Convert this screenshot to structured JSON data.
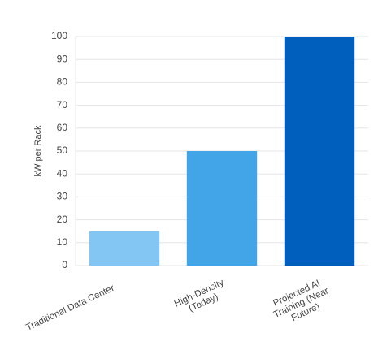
{
  "chart_data": {
    "type": "bar",
    "y_label": "kW per Rack",
    "categories": [
      "Traditional Data Center",
      "High-Density (Today)",
      "Projected AI Training (Near Future)"
    ],
    "values": [
      15,
      50,
      100
    ],
    "colors": [
      "#83c6f3",
      "#42a5e8",
      "#005ebd"
    ],
    "ylim": [
      0,
      100
    ],
    "yticks": [
      0,
      10,
      20,
      30,
      40,
      50,
      60,
      70,
      80,
      90,
      100
    ],
    "grid": true
  }
}
